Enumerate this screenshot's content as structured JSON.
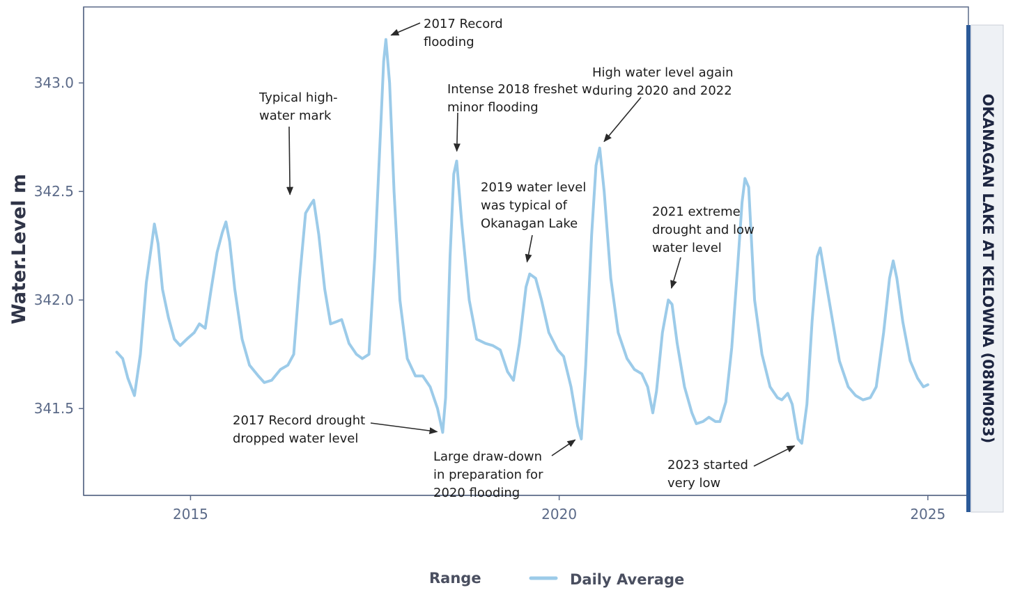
{
  "chart_data": {
    "type": "line",
    "title": "",
    "xlabel": "",
    "ylabel": "Water.Level  m",
    "panel_label": "OKANAGAN LAKE AT KELOWNA (08NM083)",
    "xlim": [
      2013.55,
      2025.55
    ],
    "ylim": [
      341.1,
      343.35
    ],
    "x_ticks": [
      2015,
      2020,
      2025
    ],
    "x_tick_labels": [
      "2015",
      "2020",
      "2025"
    ],
    "y_ticks": [
      341.5,
      342.0,
      342.5,
      343.0
    ],
    "y_tick_labels": [
      "341.5",
      "342.0",
      "342.5",
      "343.0"
    ],
    "grid": false,
    "legend": {
      "position": "bottom",
      "entries": [
        {
          "label": "Range",
          "type": "title"
        },
        {
          "label": "Daily Average",
          "type": "line"
        }
      ]
    },
    "colors": {
      "series": "#9ccbe9",
      "axis": "#5b6a88",
      "strip_bar": "#2c5a98",
      "strip_bg": "#eef1f5"
    },
    "series": [
      {
        "name": "Daily Average",
        "points": [
          [
            2014.0,
            341.76
          ],
          [
            2014.08,
            341.73
          ],
          [
            2014.15,
            341.64
          ],
          [
            2014.24,
            341.56
          ],
          [
            2014.32,
            341.75
          ],
          [
            2014.4,
            342.08
          ],
          [
            2014.47,
            342.25
          ],
          [
            2014.51,
            342.35
          ],
          [
            2014.56,
            342.26
          ],
          [
            2014.62,
            342.05
          ],
          [
            2014.7,
            341.92
          ],
          [
            2014.78,
            341.82
          ],
          [
            2014.86,
            341.79
          ],
          [
            2014.95,
            341.82
          ],
          [
            2015.05,
            341.85
          ],
          [
            2015.12,
            341.89
          ],
          [
            2015.2,
            341.87
          ],
          [
            2015.28,
            342.05
          ],
          [
            2015.36,
            342.22
          ],
          [
            2015.43,
            342.31
          ],
          [
            2015.48,
            342.36
          ],
          [
            2015.53,
            342.27
          ],
          [
            2015.6,
            342.05
          ],
          [
            2015.7,
            341.82
          ],
          [
            2015.8,
            341.7
          ],
          [
            2015.92,
            341.65
          ],
          [
            2016.0,
            341.62
          ],
          [
            2016.1,
            341.63
          ],
          [
            2016.22,
            341.68
          ],
          [
            2016.32,
            341.7
          ],
          [
            2016.4,
            341.75
          ],
          [
            2016.48,
            342.1
          ],
          [
            2016.56,
            342.4
          ],
          [
            2016.63,
            342.44
          ],
          [
            2016.67,
            342.46
          ],
          [
            2016.74,
            342.3
          ],
          [
            2016.82,
            342.05
          ],
          [
            2016.9,
            341.89
          ],
          [
            2016.98,
            341.9
          ],
          [
            2017.05,
            341.91
          ],
          [
            2017.15,
            341.8
          ],
          [
            2017.25,
            341.75
          ],
          [
            2017.33,
            341.73
          ],
          [
            2017.42,
            341.75
          ],
          [
            2017.5,
            342.2
          ],
          [
            2017.58,
            342.8
          ],
          [
            2017.62,
            343.1
          ],
          [
            2017.65,
            343.2
          ],
          [
            2017.7,
            343.0
          ],
          [
            2017.76,
            342.5
          ],
          [
            2017.84,
            342.0
          ],
          [
            2017.94,
            341.73
          ],
          [
            2018.05,
            341.65
          ],
          [
            2018.15,
            341.65
          ],
          [
            2018.25,
            341.6
          ],
          [
            2018.35,
            341.5
          ],
          [
            2018.42,
            341.39
          ],
          [
            2018.46,
            341.55
          ],
          [
            2018.52,
            342.2
          ],
          [
            2018.57,
            342.58
          ],
          [
            2018.61,
            342.64
          ],
          [
            2018.68,
            342.35
          ],
          [
            2018.78,
            342.0
          ],
          [
            2018.88,
            341.82
          ],
          [
            2019.0,
            341.8
          ],
          [
            2019.1,
            341.79
          ],
          [
            2019.2,
            341.77
          ],
          [
            2019.3,
            341.67
          ],
          [
            2019.38,
            341.63
          ],
          [
            2019.46,
            341.8
          ],
          [
            2019.55,
            342.06
          ],
          [
            2019.6,
            342.12
          ],
          [
            2019.68,
            342.1
          ],
          [
            2019.76,
            342.0
          ],
          [
            2019.86,
            341.85
          ],
          [
            2019.98,
            341.77
          ],
          [
            2020.06,
            341.74
          ],
          [
            2020.16,
            341.6
          ],
          [
            2020.25,
            341.42
          ],
          [
            2020.3,
            341.36
          ],
          [
            2020.36,
            341.7
          ],
          [
            2020.44,
            342.3
          ],
          [
            2020.5,
            342.62
          ],
          [
            2020.55,
            342.7
          ],
          [
            2020.61,
            342.5
          ],
          [
            2020.7,
            342.1
          ],
          [
            2020.8,
            341.85
          ],
          [
            2020.92,
            341.73
          ],
          [
            2021.02,
            341.68
          ],
          [
            2021.12,
            341.66
          ],
          [
            2021.2,
            341.6
          ],
          [
            2021.27,
            341.48
          ],
          [
            2021.32,
            341.58
          ],
          [
            2021.4,
            341.85
          ],
          [
            2021.48,
            342.0
          ],
          [
            2021.53,
            341.98
          ],
          [
            2021.6,
            341.8
          ],
          [
            2021.7,
            341.6
          ],
          [
            2021.8,
            341.48
          ],
          [
            2021.86,
            341.43
          ],
          [
            2021.95,
            341.44
          ],
          [
            2022.03,
            341.46
          ],
          [
            2022.12,
            341.44
          ],
          [
            2022.18,
            341.44
          ],
          [
            2022.26,
            341.53
          ],
          [
            2022.34,
            341.78
          ],
          [
            2022.42,
            342.15
          ],
          [
            2022.48,
            342.45
          ],
          [
            2022.52,
            342.56
          ],
          [
            2022.57,
            342.52
          ],
          [
            2022.65,
            342.0
          ],
          [
            2022.75,
            341.75
          ],
          [
            2022.86,
            341.6
          ],
          [
            2022.96,
            341.55
          ],
          [
            2023.02,
            341.54
          ],
          [
            2023.1,
            341.57
          ],
          [
            2023.16,
            341.52
          ],
          [
            2023.24,
            341.36
          ],
          [
            2023.29,
            341.34
          ],
          [
            2023.36,
            341.52
          ],
          [
            2023.43,
            341.9
          ],
          [
            2023.5,
            342.2
          ],
          [
            2023.54,
            342.24
          ],
          [
            2023.6,
            342.12
          ],
          [
            2023.7,
            341.92
          ],
          [
            2023.8,
            341.72
          ],
          [
            2023.92,
            341.6
          ],
          [
            2024.02,
            341.56
          ],
          [
            2024.12,
            341.54
          ],
          [
            2024.22,
            341.55
          ],
          [
            2024.3,
            341.6
          ],
          [
            2024.4,
            341.85
          ],
          [
            2024.48,
            342.1
          ],
          [
            2024.53,
            342.18
          ],
          [
            2024.58,
            342.1
          ],
          [
            2024.66,
            341.9
          ],
          [
            2024.76,
            341.72
          ],
          [
            2024.86,
            341.64
          ],
          [
            2024.94,
            341.6
          ],
          [
            2025.0,
            341.61
          ]
        ]
      }
    ],
    "annotations": [
      {
        "text": [
          "2017 Record",
          "flooding"
        ],
        "target": [
          2017.65,
          343.21
        ]
      },
      {
        "text": [
          "Typical high-",
          "water mark"
        ],
        "target": [
          2016.35,
          342.46
        ]
      },
      {
        "text": [
          "Intense 2018 freshet w",
          "minor flooding"
        ],
        "target": [
          2018.61,
          342.66
        ]
      },
      {
        "text": [
          "High water level again",
          "during 2020 and 2022"
        ],
        "target": [
          2020.56,
          342.71
        ]
      },
      {
        "text": [
          "2019 water level",
          "was typical of",
          "Okanagan Lake"
        ],
        "target": [
          2019.55,
          342.15
        ]
      },
      {
        "text": [
          "2021 extreme",
          "drought and low",
          "water level"
        ],
        "target": [
          2021.5,
          342.03
        ]
      },
      {
        "text": [
          "2017 Record drought",
          "dropped water level"
        ],
        "target": [
          2018.42,
          341.39
        ]
      },
      {
        "text": [
          "Large draw-down",
          "in preparation for",
          "2020 flooding"
        ],
        "target": [
          2020.28,
          341.37
        ]
      },
      {
        "text": [
          "2023 started",
          "very low"
        ],
        "target": [
          2023.26,
          341.34
        ]
      }
    ]
  }
}
